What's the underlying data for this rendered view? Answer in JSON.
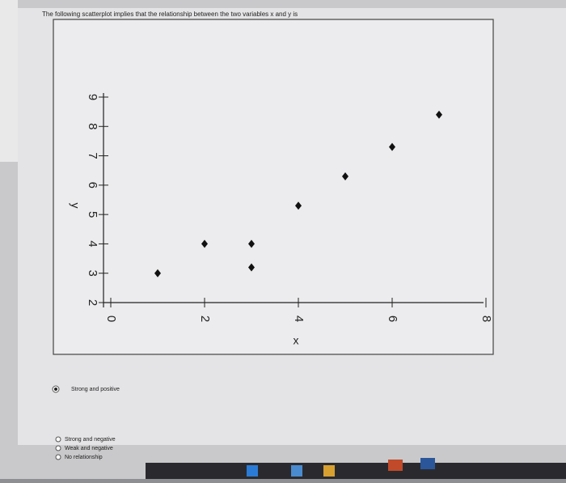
{
  "question": "The following scatterplot implies that the relationship between the two variables x and y is",
  "options": [
    "Strong and positive",
    "Strong and negative",
    "Weak and negative",
    "No relationship"
  ],
  "chart_data": {
    "type": "scatter",
    "x_label": "x",
    "y_label": "y",
    "x": [
      1,
      2,
      3,
      3,
      4,
      5,
      6,
      7
    ],
    "values": [
      3,
      4,
      4,
      3.2,
      5.3,
      6.3,
      7.3,
      8.4
    ],
    "color": "#111111",
    "xlim": [
      0,
      8
    ],
    "xticks": [
      0,
      2,
      4,
      6,
      8
    ],
    "ylim": [
      2,
      9
    ],
    "yticks": [
      2,
      3,
      4,
      5,
      6,
      7,
      8,
      9
    ]
  }
}
